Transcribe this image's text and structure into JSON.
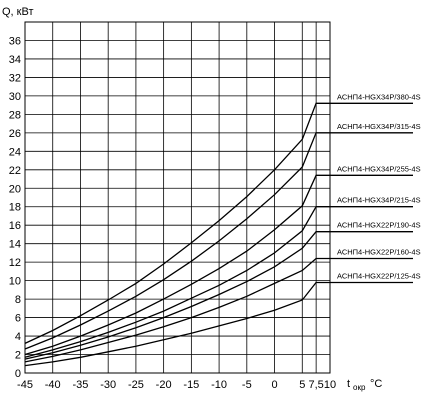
{
  "chart_data": {
    "type": "line",
    "ylabel": "Q, кВт",
    "xlabel_main": "t",
    "xlabel_sub": "окр",
    "xlabel_unit": "°C",
    "xlim": [
      -45,
      10
    ],
    "ylim": [
      0,
      38
    ],
    "x_ticks": [
      -45,
      -40,
      -35,
      -30,
      -25,
      -20,
      -15,
      -10,
      -5,
      0,
      5,
      7.5,
      10
    ],
    "x_tick_labels": [
      "-45",
      "-40",
      "-35",
      "-30",
      "-25",
      "-20",
      "-15",
      "-10",
      "-5",
      "0",
      "5",
      "7,5",
      "10"
    ],
    "y_ticks": [
      0,
      2,
      4,
      6,
      8,
      10,
      12,
      14,
      16,
      18,
      20,
      22,
      24,
      26,
      28,
      30,
      32,
      34,
      36
    ],
    "grid": true,
    "series": [
      {
        "name": "АСНП4-HGX34P/380-4S",
        "x": [
          -45,
          -40,
          -35,
          -30,
          -25,
          -20,
          -15,
          -10,
          -5,
          0,
          5,
          7.5,
          10
        ],
        "y": [
          3.2,
          4.6,
          6.2,
          7.9,
          9.7,
          11.8,
          14.1,
          16.5,
          19.1,
          22.0,
          25.3,
          29.2,
          29.2
        ]
      },
      {
        "name": "АСНП4-HGX34P/315-4S",
        "x": [
          -45,
          -40,
          -35,
          -30,
          -25,
          -20,
          -15,
          -10,
          -5,
          0,
          5,
          7.5,
          10
        ],
        "y": [
          2.6,
          3.8,
          5.2,
          6.7,
          8.3,
          10.1,
          12.1,
          14.3,
          16.7,
          19.3,
          22.3,
          26.0,
          26.0
        ]
      },
      {
        "name": "АСНП4-HGX34P/255-4S",
        "x": [
          -45,
          -40,
          -35,
          -30,
          -25,
          -20,
          -15,
          -10,
          -5,
          0,
          5,
          7.5,
          10
        ],
        "y": [
          2.0,
          2.9,
          4.0,
          5.2,
          6.5,
          8.0,
          9.6,
          11.3,
          13.2,
          15.5,
          18.1,
          21.4,
          21.4
        ]
      },
      {
        "name": "АСНП4-HGX34P/215-4S",
        "x": [
          -45,
          -40,
          -35,
          -30,
          -25,
          -20,
          -15,
          -10,
          -5,
          0,
          5,
          7.5,
          10
        ],
        "y": [
          1.7,
          2.5,
          3.4,
          4.4,
          5.5,
          6.7,
          8.1,
          9.5,
          11.1,
          13.0,
          15.4,
          18.0,
          18.0
        ]
      },
      {
        "name": "АСНП4-HGX22P/190-4S",
        "x": [
          -45,
          -40,
          -35,
          -30,
          -25,
          -20,
          -15,
          -10,
          -5,
          0,
          5,
          7.5,
          10
        ],
        "y": [
          1.5,
          2.2,
          3.0,
          3.9,
          4.9,
          6.0,
          7.2,
          8.5,
          9.9,
          11.5,
          13.5,
          15.3,
          15.3
        ]
      },
      {
        "name": "АСНП4-HGX22P/160-4S",
        "x": [
          -45,
          -40,
          -35,
          -30,
          -25,
          -20,
          -15,
          -10,
          -5,
          0,
          5,
          7.5,
          10
        ],
        "y": [
          1.2,
          1.8,
          2.5,
          3.3,
          4.1,
          5.0,
          6.0,
          7.1,
          8.3,
          9.7,
          11.1,
          12.4,
          12.4
        ]
      },
      {
        "name": "АСНП4-HGX22P/125-4S",
        "x": [
          -45,
          -40,
          -35,
          -30,
          -25,
          -20,
          -15,
          -10,
          -5,
          0,
          5,
          7.5,
          10
        ],
        "y": [
          0.8,
          1.2,
          1.7,
          2.3,
          2.9,
          3.6,
          4.3,
          5.1,
          5.9,
          6.8,
          7.9,
          9.8,
          9.8
        ]
      }
    ]
  }
}
